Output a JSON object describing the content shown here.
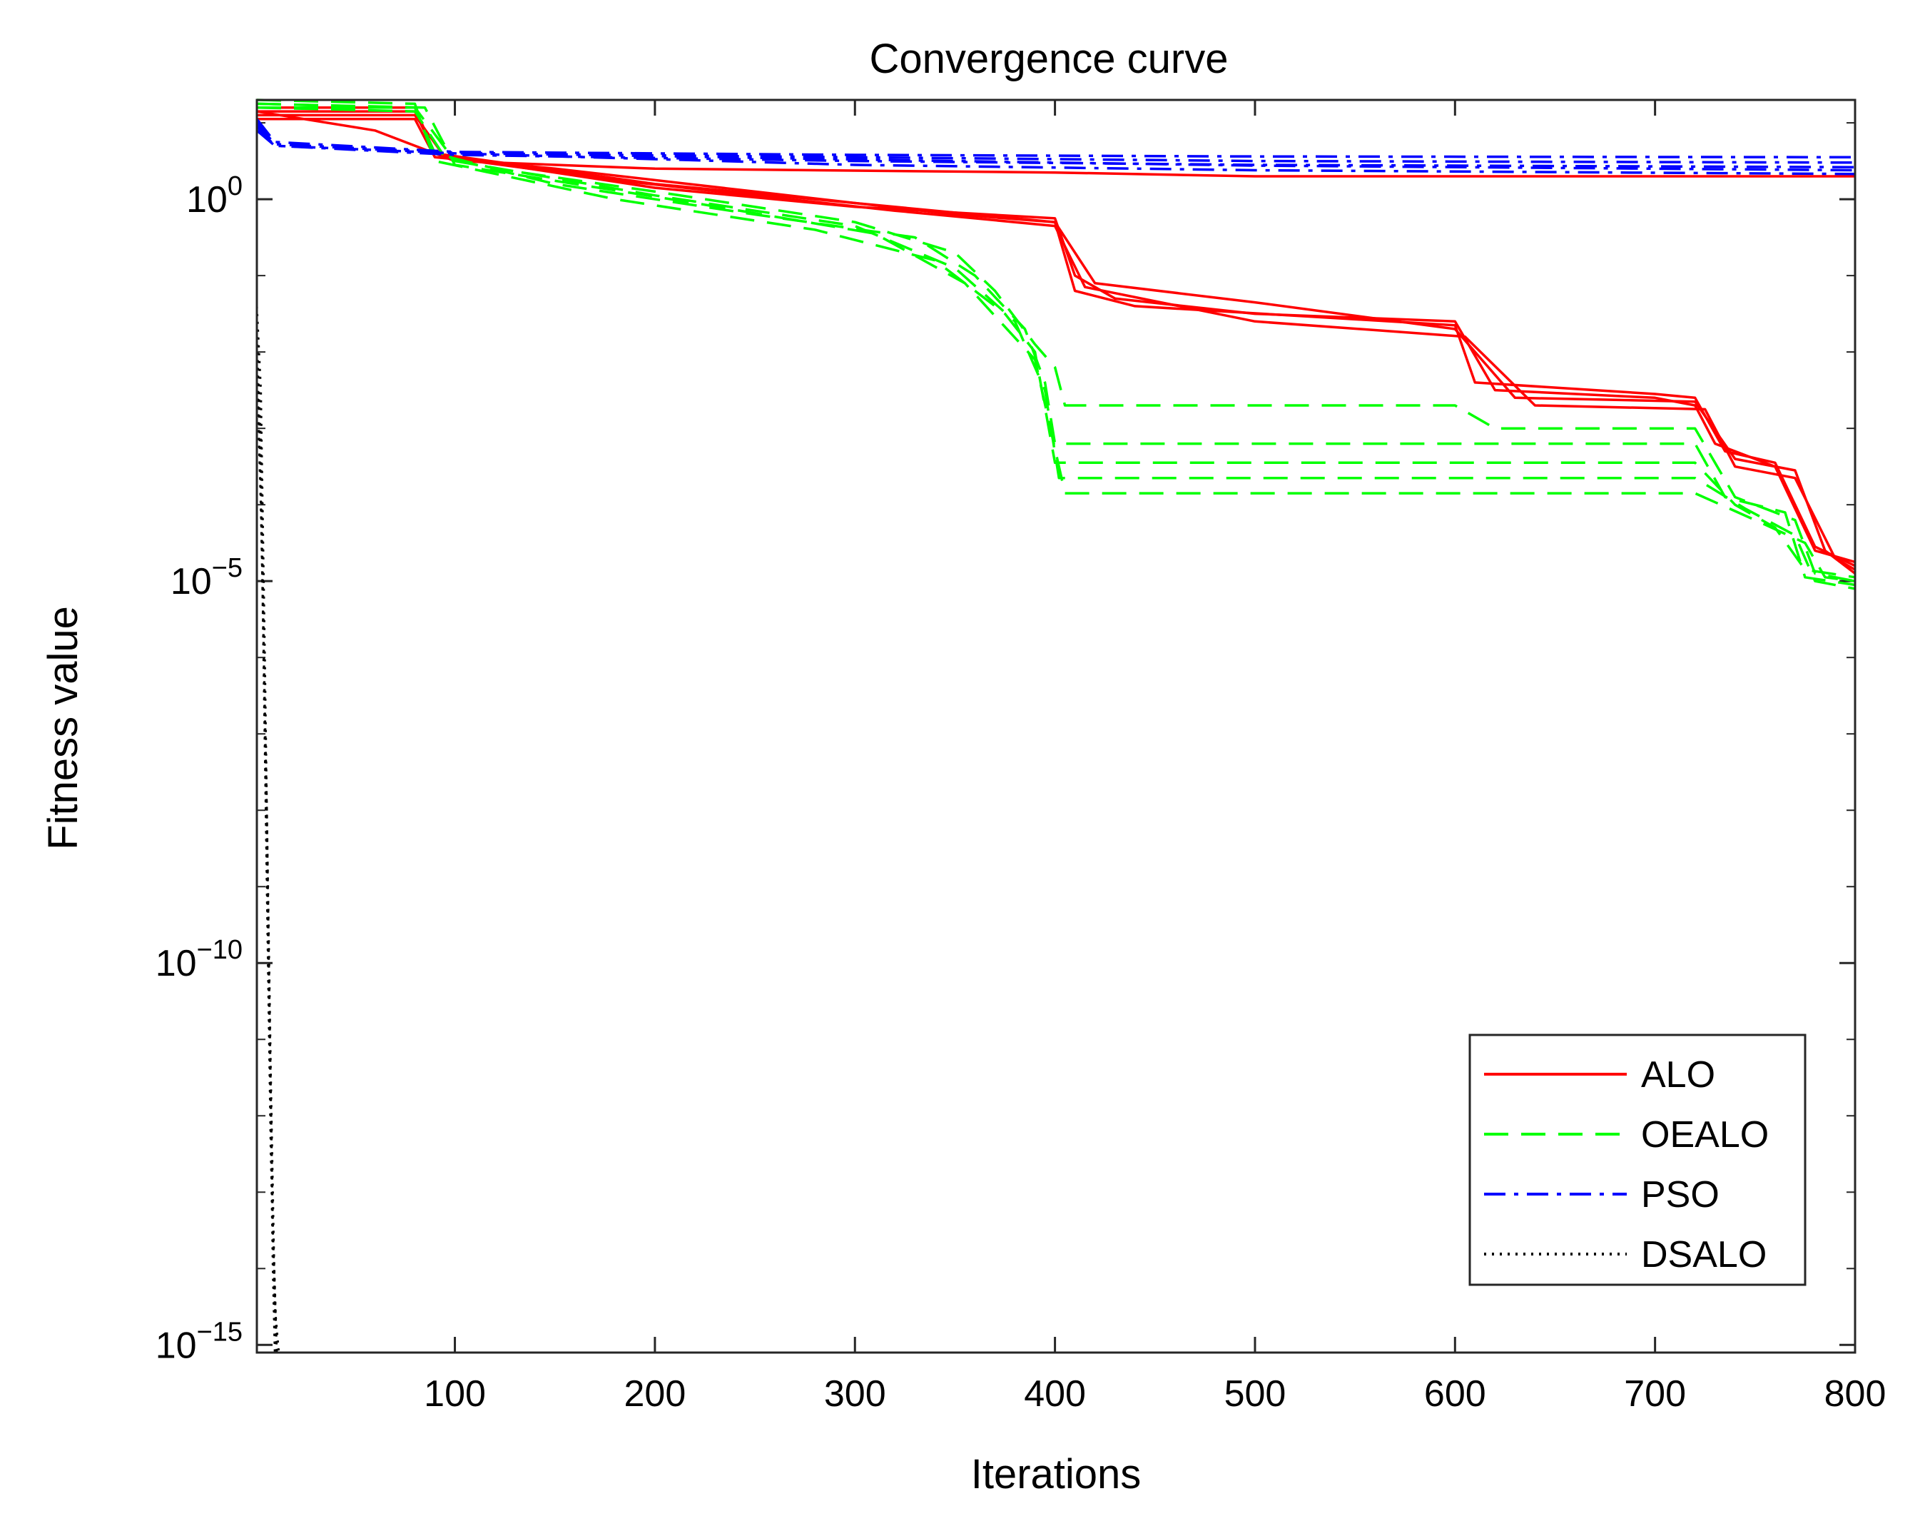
{
  "chart_data": {
    "type": "line",
    "title": "Convergence curve",
    "xlabel": "Iterations",
    "ylabel": "Fitness value",
    "xlim": [
      1,
      800
    ],
    "ylim_log10": [
      -15.1,
      1.3
    ],
    "x_ticks": [
      100,
      200,
      300,
      400,
      500,
      600,
      700,
      800
    ],
    "x_tick_labels": [
      "100",
      "200",
      "300",
      "400",
      "500",
      "600",
      "700",
      "800"
    ],
    "y_ticks_log10": [
      0,
      -5,
      -10,
      -15
    ],
    "y_tick_bases": [
      "10",
      "10",
      "10",
      "10"
    ],
    "y_tick_exponents": [
      "0",
      "−5",
      "−10",
      "−15"
    ],
    "legend_position": "bottom-right",
    "legend": [
      "ALO",
      "OEALO",
      "PSO",
      "DSALO"
    ],
    "series": [
      {
        "name": "ALO",
        "color": "#ff0000",
        "style": "solid",
        "runs": [
          [
            [
              1,
              1.15
            ],
            [
              80,
              1.15
            ],
            [
              90,
              0.6
            ],
            [
              100,
              0.55
            ],
            [
              200,
              0.15
            ],
            [
              300,
              -0.1
            ],
            [
              400,
              -0.25
            ],
            [
              410,
              -1.0
            ],
            [
              430,
              -1.3
            ],
            [
              500,
              -1.5
            ],
            [
              600,
              -1.6
            ],
            [
              620,
              -2.5
            ],
            [
              700,
              -2.6
            ],
            [
              720,
              -2.7
            ],
            [
              730,
              -3.2
            ],
            [
              760,
              -3.5
            ],
            [
              780,
              -4.6
            ],
            [
              800,
              -4.75
            ]
          ],
          [
            [
              1,
              1.05
            ],
            [
              80,
              1.05
            ],
            [
              90,
              0.55
            ],
            [
              150,
              0.4
            ],
            [
              250,
              0.1
            ],
            [
              350,
              -0.2
            ],
            [
              400,
              -0.3
            ],
            [
              420,
              -1.1
            ],
            [
              500,
              -1.35
            ],
            [
              600,
              -1.7
            ],
            [
              630,
              -2.6
            ],
            [
              720,
              -2.65
            ],
            [
              740,
              -3.4
            ],
            [
              770,
              -3.55
            ],
            [
              785,
              -4.6
            ],
            [
              800,
              -4.9
            ]
          ],
          [
            [
              1,
              1.2
            ],
            [
              80,
              1.2
            ],
            [
              90,
              0.6
            ],
            [
              200,
              0.2
            ],
            [
              300,
              -0.05
            ],
            [
              400,
              -0.3
            ],
            [
              410,
              -1.2
            ],
            [
              440,
              -1.4
            ],
            [
              600,
              -1.65
            ],
            [
              610,
              -2.4
            ],
            [
              700,
              -2.55
            ],
            [
              720,
              -2.6
            ],
            [
              735,
              -3.3
            ],
            [
              760,
              -3.45
            ],
            [
              780,
              -4.55
            ],
            [
              800,
              -4.8
            ]
          ],
          [
            [
              1,
              1.1
            ],
            [
              80,
              1.1
            ],
            [
              95,
              0.55
            ],
            [
              180,
              0.25
            ],
            [
              320,
              -0.15
            ],
            [
              400,
              -0.35
            ],
            [
              415,
              -1.15
            ],
            [
              500,
              -1.6
            ],
            [
              605,
              -1.8
            ],
            [
              640,
              -2.7
            ],
            [
              725,
              -2.75
            ],
            [
              740,
              -3.5
            ],
            [
              770,
              -3.65
            ],
            [
              790,
              -4.7
            ],
            [
              800,
              -4.85
            ]
          ],
          [
            [
              1,
              1.15
            ],
            [
              60,
              0.9
            ],
            [
              100,
              0.5
            ],
            [
              200,
              0.4
            ],
            [
              400,
              0.35
            ],
            [
              500,
              0.3
            ],
            [
              800,
              0.3
            ]
          ]
        ]
      },
      {
        "name": "OEALO",
        "color": "#00ff00",
        "style": "dashed",
        "runs": [
          [
            [
              1,
              1.25
            ],
            [
              80,
              1.2
            ],
            [
              90,
              0.6
            ],
            [
              120,
              0.4
            ],
            [
              200,
              0.1
            ],
            [
              300,
              -0.3
            ],
            [
              350,
              -0.7
            ],
            [
              370,
              -1.2
            ],
            [
              390,
              -1.9
            ],
            [
              400,
              -2.2
            ],
            [
              405,
              -2.7
            ],
            [
              600,
              -2.7
            ],
            [
              620,
              -3.0
            ],
            [
              720,
              -3.0
            ],
            [
              740,
              -3.9
            ],
            [
              770,
              -4.2
            ],
            [
              780,
              -4.9
            ],
            [
              800,
              -5.0
            ]
          ],
          [
            [
              1,
              1.2
            ],
            [
              80,
              1.15
            ],
            [
              95,
              0.55
            ],
            [
              150,
              0.2
            ],
            [
              250,
              -0.2
            ],
            [
              330,
              -0.5
            ],
            [
              360,
              -1.0
            ],
            [
              385,
              -1.7
            ],
            [
              395,
              -2.4
            ],
            [
              400,
              -3.2
            ],
            [
              600,
              -3.2
            ],
            [
              720,
              -3.2
            ],
            [
              735,
              -3.9
            ],
            [
              765,
              -4.1
            ],
            [
              775,
              -4.95
            ],
            [
              800,
              -5.05
            ]
          ],
          [
            [
              1,
              1.3
            ],
            [
              80,
              1.25
            ],
            [
              90,
              0.5
            ],
            [
              180,
              0.0
            ],
            [
              280,
              -0.4
            ],
            [
              340,
              -0.8
            ],
            [
              375,
              -1.5
            ],
            [
              390,
              -2.0
            ],
            [
              400,
              -3.45
            ],
            [
              720,
              -3.45
            ],
            [
              740,
              -4.0
            ],
            [
              760,
              -4.3
            ],
            [
              775,
              -4.85
            ],
            [
              800,
              -4.95
            ]
          ],
          [
            [
              1,
              1.2
            ],
            [
              80,
              1.2
            ],
            [
              100,
              0.5
            ],
            [
              200,
              0.05
            ],
            [
              300,
              -0.35
            ],
            [
              350,
              -0.9
            ],
            [
              380,
              -1.6
            ],
            [
              395,
              -2.5
            ],
            [
              402,
              -3.65
            ],
            [
              720,
              -3.65
            ],
            [
              745,
              -4.05
            ],
            [
              770,
              -4.4
            ],
            [
              780,
              -5.0
            ],
            [
              800,
              -5.1
            ]
          ],
          [
            [
              1,
              1.25
            ],
            [
              85,
              1.2
            ],
            [
              100,
              0.45
            ],
            [
              220,
              -0.05
            ],
            [
              310,
              -0.45
            ],
            [
              355,
              -1.1
            ],
            [
              390,
              -2.1
            ],
            [
              405,
              -3.85
            ],
            [
              720,
              -3.85
            ],
            [
              750,
              -4.2
            ],
            [
              775,
              -4.5
            ],
            [
              785,
              -4.95
            ],
            [
              800,
              -5.0
            ]
          ]
        ]
      },
      {
        "name": "PSO",
        "color": "#0000ff",
        "style": "dashdot",
        "runs": [
          [
            [
              1,
              1.05
            ],
            [
              10,
              0.75
            ],
            [
              100,
              0.62
            ],
            [
              300,
              0.58
            ],
            [
              500,
              0.56
            ],
            [
              800,
              0.55
            ]
          ],
          [
            [
              1,
              0.95
            ],
            [
              10,
              0.7
            ],
            [
              100,
              0.58
            ],
            [
              300,
              0.5
            ],
            [
              500,
              0.45
            ],
            [
              800,
              0.42
            ]
          ],
          [
            [
              1,
              1.0
            ],
            [
              10,
              0.72
            ],
            [
              100,
              0.6
            ],
            [
              300,
              0.55
            ],
            [
              500,
              0.5
            ],
            [
              800,
              0.48
            ]
          ],
          [
            [
              1,
              0.9
            ],
            [
              10,
              0.7
            ],
            [
              100,
              0.6
            ],
            [
              300,
              0.45
            ],
            [
              500,
              0.38
            ],
            [
              800,
              0.33
            ]
          ],
          [
            [
              1,
              1.0
            ],
            [
              10,
              0.72
            ],
            [
              100,
              0.61
            ],
            [
              300,
              0.52
            ],
            [
              500,
              0.44
            ],
            [
              800,
              0.38
            ]
          ]
        ]
      },
      {
        "name": "DSALO",
        "color": "#000000",
        "style": "dotted",
        "runs": [
          [
            [
              1,
              -1.4
            ],
            [
              3,
              -2.5
            ],
            [
              5,
              -6.0
            ],
            [
              7,
              -10.0
            ],
            [
              9,
              -13.5
            ],
            [
              11,
              -15.1
            ]
          ],
          [
            [
              1,
              -1.8
            ],
            [
              3,
              -3.2
            ],
            [
              5,
              -6.8
            ],
            [
              7,
              -10.5
            ],
            [
              9,
              -14.0
            ],
            [
              10,
              -15.1
            ]
          ],
          [
            [
              1,
              -2.2
            ],
            [
              3,
              -4.0
            ],
            [
              6,
              -8.0
            ],
            [
              8,
              -11.5
            ],
            [
              10,
              -14.5
            ],
            [
              12,
              -15.1
            ]
          ],
          [
            [
              1,
              -1.6
            ],
            [
              3,
              -3.6
            ],
            [
              5,
              -7.2
            ],
            [
              8,
              -12.0
            ],
            [
              10,
              -15.0
            ],
            [
              11,
              -15.1
            ]
          ],
          [
            [
              1,
              -2.0
            ],
            [
              4,
              -5.0
            ],
            [
              6,
              -9.0
            ],
            [
              8,
              -12.5
            ],
            [
              11,
              -15.1
            ]
          ]
        ]
      }
    ]
  }
}
